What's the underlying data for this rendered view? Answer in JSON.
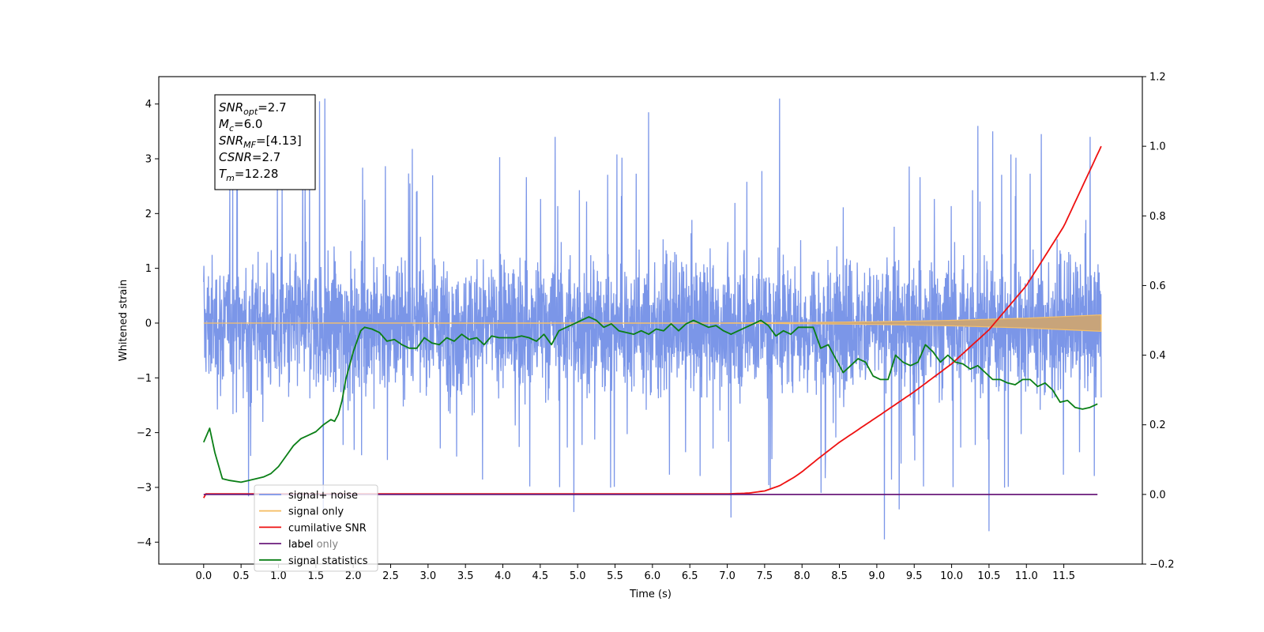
{
  "chart_data": {
    "type": "line",
    "xlabel": "Time (s)",
    "ylabel": "Whitened strain",
    "xlim": [
      -0.6,
      12.55
    ],
    "ylim": [
      -4.4,
      4.5
    ],
    "ylim_right": [
      -0.2,
      1.2
    ],
    "x_ticks": [
      "0.0",
      "0.5",
      "1.0",
      "1.5",
      "2.0",
      "2.5",
      "3.0",
      "3.5",
      "4.0",
      "4.5",
      "5.0",
      "5.5",
      "6.0",
      "6.5",
      "7.0",
      "7.5",
      "8.0",
      "8.5",
      "9.0",
      "9.5",
      "10.0",
      "10.5",
      "11.0",
      "11.5"
    ],
    "x_tick_values": [
      0.0,
      0.5,
      1.0,
      1.5,
      2.0,
      2.5,
      3.0,
      3.5,
      4.0,
      4.5,
      5.0,
      5.5,
      6.0,
      6.5,
      7.0,
      7.5,
      8.0,
      8.5,
      9.0,
      9.5,
      10.0,
      10.5,
      11.0,
      11.5
    ],
    "y_ticks": [
      "−4",
      "−3",
      "−2",
      "−1",
      "0",
      "1",
      "2",
      "3",
      "4"
    ],
    "y_tick_values": [
      -4,
      -3,
      -2,
      -1,
      0,
      1,
      2,
      3,
      4
    ],
    "y_ticks_right": [
      "−0.2",
      "0.0",
      "0.2",
      "0.4",
      "0.6",
      "0.8",
      "1.0",
      "1.2"
    ],
    "y_tick_values_right": [
      -0.2,
      0.0,
      0.2,
      0.4,
      0.6,
      0.8,
      1.0,
      1.2
    ],
    "grid": false,
    "legend_placement": "lower-left",
    "annotation": {
      "lines": [
        {
          "base": "SNR",
          "sub": "opt",
          "value": "=2.7"
        },
        {
          "base": "M",
          "sub": "c",
          "value": "=6.0"
        },
        {
          "base": "SNR",
          "sub": "MF",
          "value": "=[4.13]"
        },
        {
          "base": "CSNR",
          "sub": "",
          "value": "=2.7"
        },
        {
          "base": "T",
          "sub": "m",
          "value": "=12.28"
        }
      ]
    },
    "series": [
      {
        "name": "signal+ noise",
        "color": "#7b96e8",
        "axis": "left",
        "x_range": [
          0.0,
          12.0
        ],
        "envelope_x": [
          0,
          1,
          2,
          3,
          4,
          5,
          6,
          7,
          8,
          9,
          10,
          11,
          12
        ],
        "typical_upper": [
          1.4,
          1.5,
          1.5,
          1.5,
          1.5,
          1.5,
          1.5,
          1.5,
          1.5,
          1.5,
          1.5,
          1.5,
          1.4
        ],
        "typical_lower": [
          -1.5,
          -1.6,
          -1.6,
          -1.6,
          -1.6,
          -1.6,
          -1.6,
          -1.6,
          -1.6,
          -1.6,
          -1.6,
          -1.6,
          -1.5
        ],
        "peaks": [
          [
            1.55,
            4.05
          ],
          [
            1.62,
            4.1
          ],
          [
            7.7,
            4.1
          ],
          [
            5.95,
            3.85
          ],
          [
            0.45,
            3.6
          ],
          [
            10.35,
            3.6
          ],
          [
            10.55,
            3.5
          ],
          [
            11.2,
            3.45
          ],
          [
            11.85,
            3.4
          ],
          [
            4.7,
            3.4
          ],
          [
            9.1,
            -3.95
          ],
          [
            10.5,
            -3.8
          ],
          [
            7.05,
            -3.55
          ],
          [
            4.95,
            -3.45
          ],
          [
            1.6,
            -3.4
          ],
          [
            9.3,
            -3.4
          ]
        ]
      },
      {
        "name": "signal only",
        "color": "#f5c06a",
        "axis": "left",
        "x": [
          0,
          7,
          8,
          9,
          10,
          11,
          12
        ],
        "amplitude": [
          0.0,
          0.003,
          0.01,
          0.025,
          0.05,
          0.09,
          0.15
        ]
      },
      {
        "name": "cumilative SNR",
        "color": "#ee1111",
        "axis": "right",
        "x": [
          0.0,
          0.02,
          7.0,
          7.3,
          7.5,
          7.7,
          7.9,
          8.0,
          8.2,
          8.5,
          9.0,
          9.5,
          10.0,
          10.5,
          11.0,
          11.5,
          12.0
        ],
        "values": [
          -0.01,
          0.0015,
          0.0015,
          0.004,
          0.01,
          0.025,
          0.05,
          0.065,
          0.1,
          0.15,
          0.222,
          0.295,
          0.375,
          0.473,
          0.6,
          0.77,
          1.0
        ]
      },
      {
        "name": "label",
        "color": "#6a1b7b",
        "axis": "right",
        "x": [
          0.0,
          11.95
        ],
        "values": [
          0.0,
          0.0
        ]
      },
      {
        "name": "signal statistics",
        "color": "#0a7f16",
        "axis": "right",
        "x": [
          0.0,
          0.08,
          0.15,
          0.25,
          0.35,
          0.5,
          0.6,
          0.7,
          0.8,
          0.9,
          1.0,
          1.1,
          1.2,
          1.3,
          1.4,
          1.5,
          1.6,
          1.7,
          1.75,
          1.8,
          1.85,
          1.9,
          2.0,
          2.1,
          2.15,
          2.25,
          2.35,
          2.45,
          2.55,
          2.65,
          2.75,
          2.85,
          2.95,
          3.05,
          3.15,
          3.25,
          3.35,
          3.45,
          3.55,
          3.65,
          3.75,
          3.85,
          3.95,
          4.05,
          4.15,
          4.25,
          4.35,
          4.45,
          4.55,
          4.65,
          4.75,
          4.85,
          4.95,
          5.05,
          5.15,
          5.25,
          5.35,
          5.45,
          5.55,
          5.65,
          5.75,
          5.85,
          5.95,
          6.05,
          6.15,
          6.25,
          6.35,
          6.45,
          6.55,
          6.65,
          6.75,
          6.85,
          6.95,
          7.05,
          7.15,
          7.25,
          7.35,
          7.45,
          7.55,
          7.65,
          7.75,
          7.85,
          7.95,
          8.05,
          8.15,
          8.25,
          8.35,
          8.45,
          8.55,
          8.65,
          8.75,
          8.85,
          8.95,
          9.05,
          9.15,
          9.25,
          9.35,
          9.45,
          9.55,
          9.65,
          9.75,
          9.85,
          9.95,
          10.05,
          10.15,
          10.25,
          10.35,
          10.45,
          10.55,
          10.65,
          10.75,
          10.85,
          10.95,
          11.05,
          11.15,
          11.25,
          11.35,
          11.45,
          11.55,
          11.65,
          11.75,
          11.85,
          11.95
        ],
        "values": [
          0.15,
          0.19,
          0.12,
          0.045,
          0.04,
          0.035,
          0.04,
          0.045,
          0.05,
          0.06,
          0.08,
          0.11,
          0.14,
          0.16,
          0.17,
          0.18,
          0.2,
          0.215,
          0.21,
          0.23,
          0.27,
          0.33,
          0.41,
          0.47,
          0.48,
          0.475,
          0.465,
          0.44,
          0.445,
          0.43,
          0.42,
          0.42,
          0.45,
          0.435,
          0.43,
          0.45,
          0.44,
          0.46,
          0.445,
          0.45,
          0.43,
          0.455,
          0.45,
          0.45,
          0.45,
          0.455,
          0.45,
          0.44,
          0.46,
          0.43,
          0.47,
          0.48,
          0.49,
          0.5,
          0.51,
          0.5,
          0.48,
          0.49,
          0.47,
          0.465,
          0.46,
          0.47,
          0.46,
          0.475,
          0.47,
          0.49,
          0.47,
          0.49,
          0.5,
          0.49,
          0.48,
          0.485,
          0.47,
          0.46,
          0.47,
          0.48,
          0.49,
          0.5,
          0.485,
          0.455,
          0.47,
          0.46,
          0.48,
          0.48,
          0.48,
          0.42,
          0.43,
          0.39,
          0.35,
          0.37,
          0.39,
          0.38,
          0.34,
          0.33,
          0.33,
          0.4,
          0.38,
          0.37,
          0.38,
          0.43,
          0.41,
          0.38,
          0.4,
          0.38,
          0.375,
          0.36,
          0.37,
          0.35,
          0.33,
          0.33,
          0.32,
          0.315,
          0.33,
          0.33,
          0.31,
          0.32,
          0.3,
          0.265,
          0.27,
          0.25,
          0.245,
          0.25,
          0.26
        ]
      }
    ],
    "legend": [
      {
        "label": "signal+ noise",
        "color": "#7b96e8"
      },
      {
        "label": "signal only",
        "color": "#f5c06a"
      },
      {
        "label": "cumilative SNR",
        "color": "#ee1111"
      },
      {
        "label": "label",
        "color": "#6a1b7b"
      },
      {
        "label": "signal statistics",
        "color": "#0a7f16"
      }
    ],
    "legend_hidden_text": "label only"
  }
}
